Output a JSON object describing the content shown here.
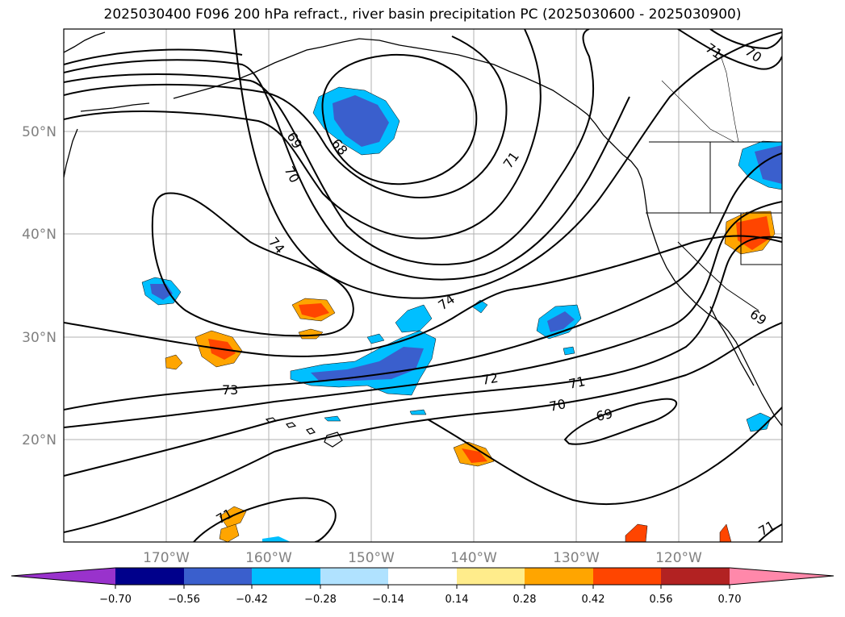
{
  "title": "2025030400 F096 200 hPa refract., river basin precipitation PC (2025030600 - 2025030900)",
  "lat_labels": [
    "50°N",
    "40°N",
    "30°N",
    "20°N"
  ],
  "lon_labels": [
    "170°W",
    "160°W",
    "150°W",
    "140°W",
    "130°W",
    "120°W"
  ],
  "contour_labels": [
    "69",
    "68",
    "70",
    "74",
    "71",
    "71",
    "70",
    "74",
    "72",
    "71",
    "73",
    "70",
    "69",
    "69",
    "71",
    "71"
  ],
  "colorbar": {
    "ticks": [
      "−0.70",
      "−0.56",
      "−0.42",
      "−0.28",
      "−0.14",
      "0.14",
      "0.28",
      "0.42",
      "0.56",
      "0.70"
    ],
    "colors": [
      "#9932cc",
      "#00008b",
      "#3a5fcd",
      "#00bfff",
      "#b0e2ff",
      "#ffffff",
      "#ffec8b",
      "#ffa500",
      "#ff4500",
      "#b22222",
      "#ff88aa",
      "#ff88aa"
    ]
  },
  "colors": {
    "blue_dark": "#3a5fcd",
    "blue": "#00bfff",
    "blue_light": "#b0e2ff",
    "yellow": "#ffec8b",
    "orange": "#ffa500",
    "red": "#ff4500"
  }
}
